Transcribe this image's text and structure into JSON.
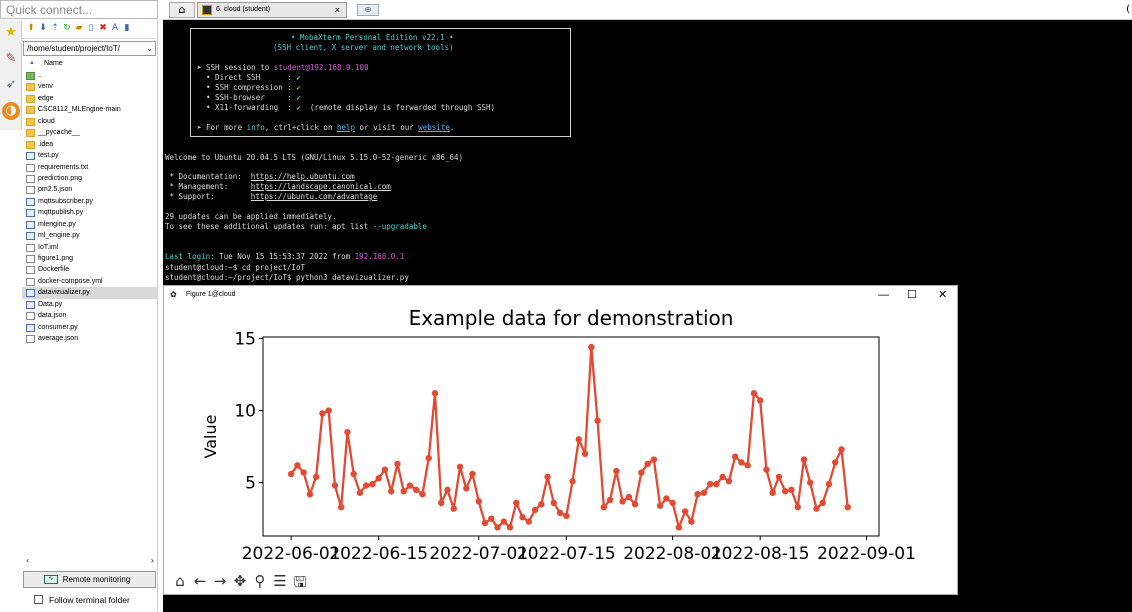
{
  "app": {
    "quick_connect_placeholder": "Quick connect...",
    "tab_home_icon": "home-icon",
    "active_tab_label": "6. cloud (student)",
    "tab_close": "×",
    "new_tab_icon": "new-tab-icon",
    "right_edge_char": "("
  },
  "sidebar": {
    "path": "/home/student/project/IoT/",
    "column_header": "Name",
    "files": [
      {
        "name": "..",
        "kind": "up"
      },
      {
        "name": "venv",
        "kind": "folder"
      },
      {
        "name": "edge",
        "kind": "folder"
      },
      {
        "name": "CSC8112_MLEngine-main",
        "kind": "folder"
      },
      {
        "name": "cloud",
        "kind": "folder"
      },
      {
        "name": "__pycache__",
        "kind": "folder"
      },
      {
        "name": ".idea",
        "kind": "folder"
      },
      {
        "name": "test.py",
        "kind": "py"
      },
      {
        "name": "requirements.txt",
        "kind": "file"
      },
      {
        "name": "prediction.png",
        "kind": "file"
      },
      {
        "name": "pm2.5.json",
        "kind": "file"
      },
      {
        "name": "mqttsubscriber.py",
        "kind": "py"
      },
      {
        "name": "mqttpublish.py",
        "kind": "py"
      },
      {
        "name": "mlengine.py",
        "kind": "py"
      },
      {
        "name": "ml_engine.py",
        "kind": "py"
      },
      {
        "name": "IoT.iml",
        "kind": "file"
      },
      {
        "name": "figure1.png",
        "kind": "file"
      },
      {
        "name": "Dockerfile",
        "kind": "file"
      },
      {
        "name": "docker-compose.yml",
        "kind": "file"
      },
      {
        "name": "datavizualizer.py",
        "kind": "py",
        "selected": true
      },
      {
        "name": "Data.py",
        "kind": "py"
      },
      {
        "name": "data.json",
        "kind": "file"
      },
      {
        "name": "consumer.py",
        "kind": "py"
      },
      {
        "name": "average.json",
        "kind": "file"
      }
    ],
    "remote_monitoring_label": "Remote monitoring",
    "follow_terminal_label": "Follow terminal folder"
  },
  "terminal": {
    "banner_title": "• MobaXterm Personal Edition v22.1 •",
    "banner_subtitle": "(SSH client, X server and network tools)",
    "ssh_session_prefix": "➤ SSH session to ",
    "ssh_user_host": "student@192.168.0.100",
    "features": [
      {
        "label": "  • Direct SSH      :",
        "value": "✔",
        "note": ""
      },
      {
        "label": "  • SSH compression :",
        "value": "✔",
        "note": ""
      },
      {
        "label": "  • SSH-browser     :",
        "value": "✔",
        "note": ""
      },
      {
        "label": "  • X11-forwarding  :",
        "value": "✔",
        "note": "  (remote display is forwarded through SSH)"
      }
    ],
    "info_line_prefix": "➤ For more ",
    "info_word": "info",
    "info_mid": ", ctrl+click on ",
    "help_word": "help",
    "info_mid2": " or visit our ",
    "website_word": "website",
    "info_end": ".",
    "welcome": "Welcome to Ubuntu 20.04.5 LTS (GNU/Linux 5.15.0-52-generic x86_64)",
    "docs_label": " * Documentation:  ",
    "docs_url": "https://help.ubuntu.com",
    "mgmt_label": " * Management:     ",
    "mgmt_url": "https://landscape.canonical.com",
    "support_label": " * Support:        ",
    "support_url": "https://ubuntu.com/advantage",
    "updates_line": "29 updates can be applied immediately.",
    "updates_hint_prefix": "To see these additional updates run: apt list ",
    "updates_hint_flag": "--upgradable",
    "last_login_label": "Last login:",
    "last_login_text": " Tue Nov 15 15:53:37 2022 from ",
    "last_login_ip": "192.168.0.1",
    "cmd1": "student@cloud:~$ cd project/IoT",
    "cmd2": "student@cloud:~/project/IoT$ python3 datavizualizer.py"
  },
  "figure_window": {
    "title": "Figure 1@cloud",
    "minimize": "—",
    "maximize": "☐",
    "close": "✕",
    "toolbar_icons": [
      "home-icon",
      "back-arrow-icon",
      "forward-arrow-icon",
      "pan-icon",
      "zoom-icon",
      "configure-icon",
      "save-icon"
    ]
  },
  "chart_data": {
    "type": "line",
    "title": "Example data for demonstration",
    "xlabel": "",
    "ylabel": "Value",
    "line_color": "#e24a33",
    "x_start": "2022-06-01",
    "x": [
      "2022-06-01",
      "2022-06-02",
      "2022-06-03",
      "2022-06-04",
      "2022-06-05",
      "2022-06-06",
      "2022-06-07",
      "2022-06-08",
      "2022-06-09",
      "2022-06-10",
      "2022-06-11",
      "2022-06-12",
      "2022-06-13",
      "2022-06-14",
      "2022-06-15",
      "2022-06-16",
      "2022-06-17",
      "2022-06-18",
      "2022-06-19",
      "2022-06-20",
      "2022-06-21",
      "2022-06-22",
      "2022-06-23",
      "2022-06-24",
      "2022-06-25",
      "2022-06-26",
      "2022-06-27",
      "2022-06-28",
      "2022-06-29",
      "2022-06-30",
      "2022-07-01",
      "2022-07-02",
      "2022-07-03",
      "2022-07-04",
      "2022-07-05",
      "2022-07-06",
      "2022-07-07",
      "2022-07-08",
      "2022-07-09",
      "2022-07-10",
      "2022-07-11",
      "2022-07-12",
      "2022-07-13",
      "2022-07-14",
      "2022-07-15",
      "2022-07-16",
      "2022-07-17",
      "2022-07-18",
      "2022-07-19",
      "2022-07-20",
      "2022-07-21",
      "2022-07-22",
      "2022-07-23",
      "2022-07-24",
      "2022-07-25",
      "2022-07-26",
      "2022-07-27",
      "2022-07-28",
      "2022-07-29",
      "2022-07-30",
      "2022-07-31",
      "2022-08-01",
      "2022-08-02",
      "2022-08-03",
      "2022-08-04",
      "2022-08-05",
      "2022-08-06",
      "2022-08-07",
      "2022-08-08",
      "2022-08-09",
      "2022-08-10",
      "2022-08-11",
      "2022-08-12",
      "2022-08-13",
      "2022-08-14",
      "2022-08-15",
      "2022-08-16",
      "2022-08-17",
      "2022-08-18",
      "2022-08-19",
      "2022-08-20",
      "2022-08-21",
      "2022-08-22",
      "2022-08-23",
      "2022-08-24",
      "2022-08-25",
      "2022-08-26",
      "2022-08-27",
      "2022-08-28",
      "2022-08-29"
    ],
    "values": [
      5.6,
      6.2,
      5.7,
      4.2,
      5.4,
      9.8,
      10.0,
      4.8,
      3.3,
      8.5,
      5.6,
      4.3,
      4.8,
      4.9,
      5.3,
      5.9,
      4.4,
      6.3,
      4.4,
      4.8,
      4.5,
      4.2,
      6.7,
      11.2,
      3.6,
      4.5,
      3.2,
      6.1,
      4.6,
      5.6,
      3.7,
      2.2,
      2.5,
      1.9,
      2.3,
      1.9,
      3.6,
      2.6,
      2.3,
      3.1,
      3.5,
      5.4,
      3.6,
      2.9,
      2.7,
      5.1,
      8.0,
      7.0,
      14.4,
      9.3,
      3.3,
      3.8,
      5.8,
      3.7,
      4.0,
      3.5,
      5.7,
      6.3,
      6.6,
      3.4,
      3.9,
      3.6,
      1.9,
      3.0,
      2.3,
      4.2,
      4.3,
      4.9,
      4.9,
      5.4,
      5.1,
      6.8,
      6.4,
      6.2,
      11.2,
      10.7,
      5.9,
      4.3,
      5.4,
      4.4,
      4.5,
      3.3,
      6.6,
      5.0,
      3.2,
      3.6,
      4.9,
      6.4,
      7.3,
      3.3
    ],
    "ylim": [
      1.3,
      15.1
    ],
    "yticks": [
      5,
      10,
      15
    ],
    "xtick_labels": [
      "2022-06-01",
      "2022-06-15",
      "2022-07-01",
      "2022-07-15",
      "2022-08-01",
      "2022-08-15",
      "2022-09-01"
    ],
    "xtick_offsets": [
      0,
      14,
      30,
      44,
      61,
      75,
      92
    ],
    "x_range_offsets": [
      -4.5,
      94
    ],
    "grid": false
  }
}
